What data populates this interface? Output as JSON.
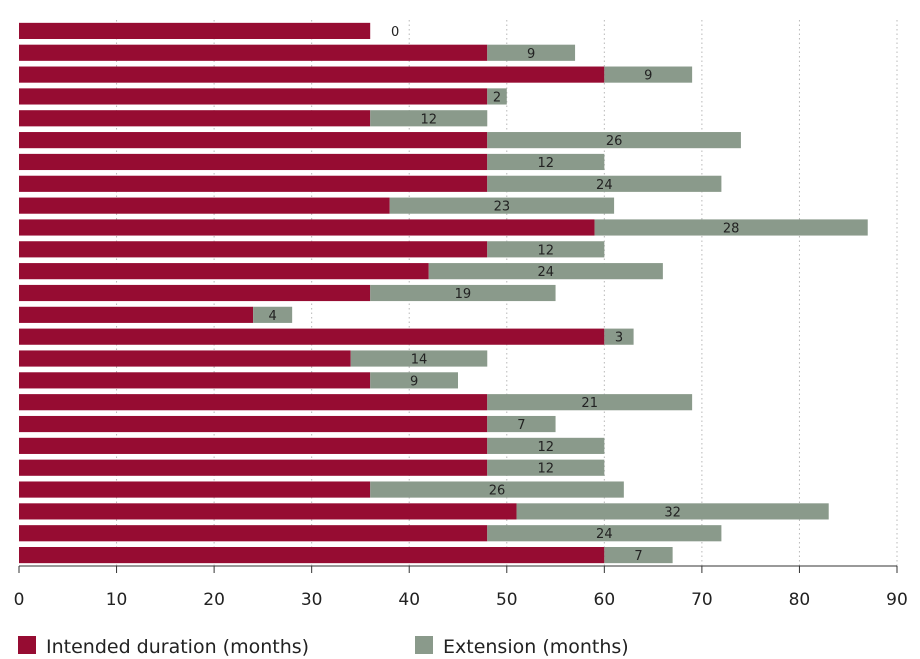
{
  "chart_data": {
    "type": "bar",
    "orientation": "horizontal",
    "stacked": true,
    "xlim": [
      0,
      90
    ],
    "x_ticks": [
      0,
      10,
      20,
      30,
      40,
      50,
      60,
      70,
      80,
      90
    ],
    "grid": "vertical dotted",
    "legend_position": "bottom",
    "series": [
      {
        "name": "Intended duration (months)",
        "color": "#960c32",
        "values": [
          36,
          48,
          60,
          48,
          36,
          48,
          48,
          48,
          38,
          59,
          48,
          42,
          36,
          24,
          60,
          34,
          36,
          48,
          48,
          48,
          48,
          36,
          51,
          48,
          60
        ]
      },
      {
        "name": "Extension (months)",
        "color": "#8a9a8b",
        "values": [
          0,
          9,
          9,
          2,
          12,
          26,
          12,
          24,
          23,
          28,
          12,
          24,
          19,
          4,
          3,
          14,
          9,
          21,
          7,
          12,
          12,
          26,
          32,
          24,
          7
        ]
      }
    ]
  }
}
